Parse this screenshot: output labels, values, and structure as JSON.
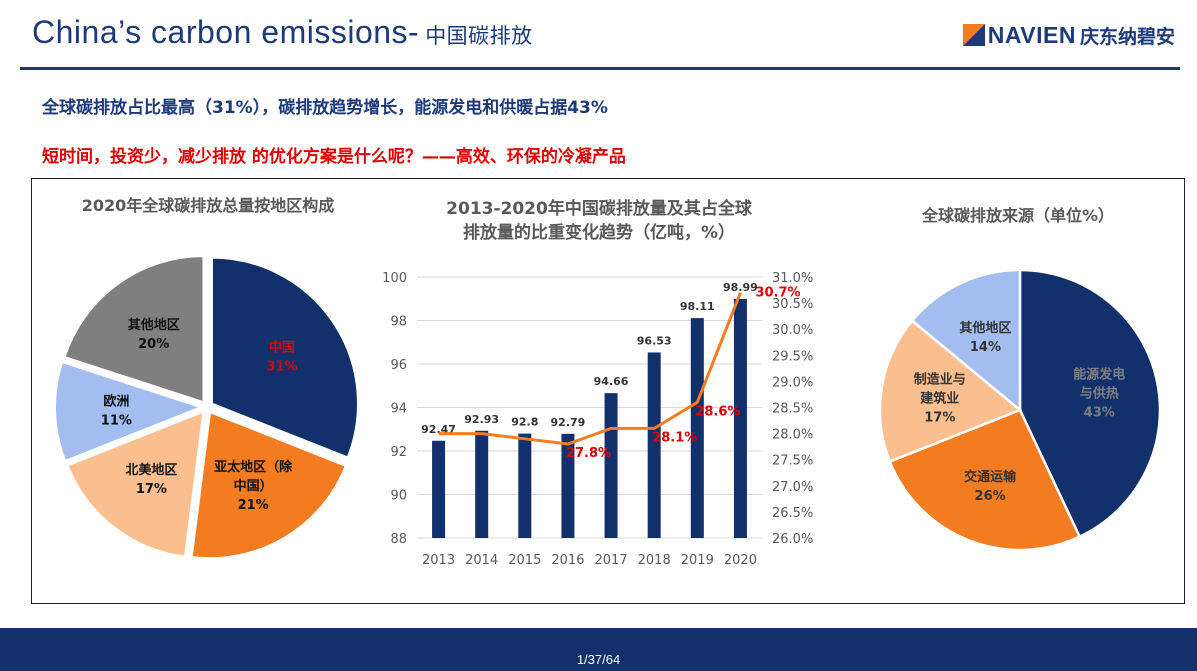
{
  "header": {
    "title_en": "China’s carbon emissions-",
    "title_cn": "中国碳排放",
    "logo_text": "NAVIEN",
    "logo_cn": "庆东纳碧安"
  },
  "subtitle1": "全球碳排放占比最高（31%），碳排放趋势增长，能源发电和供暖占据43%",
  "subtitle2": "短时间，投资少，减少排放 的优化方案是什么呢？——高效、环保的冷凝产品",
  "footer": {
    "page": "1/37/64"
  },
  "colors": {
    "navy": "#1d3a7a",
    "red": "#e00000",
    "orange": "#f47c20"
  },
  "chart_data": [
    {
      "type": "pie",
      "title": "2020年全球碳排放总量按地区构成",
      "slices": [
        {
          "label": "中国",
          "value": 31,
          "pct": "31%",
          "color": "#12306b",
          "text_color": "#e00000"
        },
        {
          "label": "亚太地区（除中国）",
          "label_lines": [
            "亚太地区（除",
            "中国）"
          ],
          "value": 21,
          "pct": "21%",
          "color": "#f47c20",
          "text_color": "#111111"
        },
        {
          "label": "北美地区",
          "value": 17,
          "pct": "17%",
          "color": "#fbbf8f",
          "text_color": "#111111"
        },
        {
          "label": "欧洲",
          "value": 11,
          "pct": "11%",
          "color": "#a4bdf0",
          "text_color": "#111111"
        },
        {
          "label": "其他地区",
          "value": 20,
          "pct": "20%",
          "color": "#7f7f7f",
          "text_color": "#111111"
        }
      ]
    },
    {
      "type": "bar+line",
      "title_lines": [
        "2013-2020年中国碳排放量及其占全球",
        "排放量的比重变化趋势（亿吨，%）"
      ],
      "categories": [
        "2013",
        "2014",
        "2015",
        "2016",
        "2017",
        "2018",
        "2019",
        "2020"
      ],
      "bar_values": [
        92.47,
        92.93,
        92.8,
        92.79,
        94.66,
        96.53,
        98.11,
        98.99
      ],
      "bar_labels": [
        "92.47",
        "92.93",
        "92.8",
        "92.79",
        "94.66",
        "96.53",
        "98.11",
        "98.99"
      ],
      "line_values": [
        28.0,
        28.0,
        27.9,
        27.8,
        28.1,
        28.1,
        28.6,
        30.7
      ],
      "line_labels": [
        "",
        "",
        "",
        "27.8%",
        "",
        "28.1%",
        "28.6%",
        "30.7%"
      ],
      "left_axis": {
        "min": 88,
        "max": 100,
        "ticks": [
          "88",
          "90",
          "92",
          "94",
          "96",
          "98",
          "100"
        ]
      },
      "right_axis": {
        "min": 26.0,
        "max": 31.0,
        "ticks": [
          "26.0%",
          "26.5%",
          "27.0%",
          "27.5%",
          "28.0%",
          "28.5%",
          "29.0%",
          "29.5%",
          "30.0%",
          "30.5%",
          "31.0%"
        ]
      },
      "grid": true,
      "bar_color": "#12306b",
      "line_color": "#f47c20"
    },
    {
      "type": "pie",
      "title": "全球碳排放来源（单位%）",
      "slices": [
        {
          "label": "能源发电与供热",
          "label_lines": [
            "能源发电",
            "与供热"
          ],
          "value": 43,
          "pct": "43%",
          "color": "#12306b",
          "text_color": "#7f7f7f"
        },
        {
          "label": "交通运输",
          "value": 26,
          "pct": "26%",
          "color": "#f47c20",
          "text_color": "#333333"
        },
        {
          "label": "制造业与建筑业",
          "label_lines": [
            "制造业与",
            "建筑业"
          ],
          "value": 17,
          "pct": "17%",
          "color": "#fbbf8f",
          "text_color": "#333333"
        },
        {
          "label": "其他地区",
          "value": 14,
          "pct": "14%",
          "color": "#a4bdf0",
          "text_color": "#333333"
        }
      ]
    }
  ]
}
